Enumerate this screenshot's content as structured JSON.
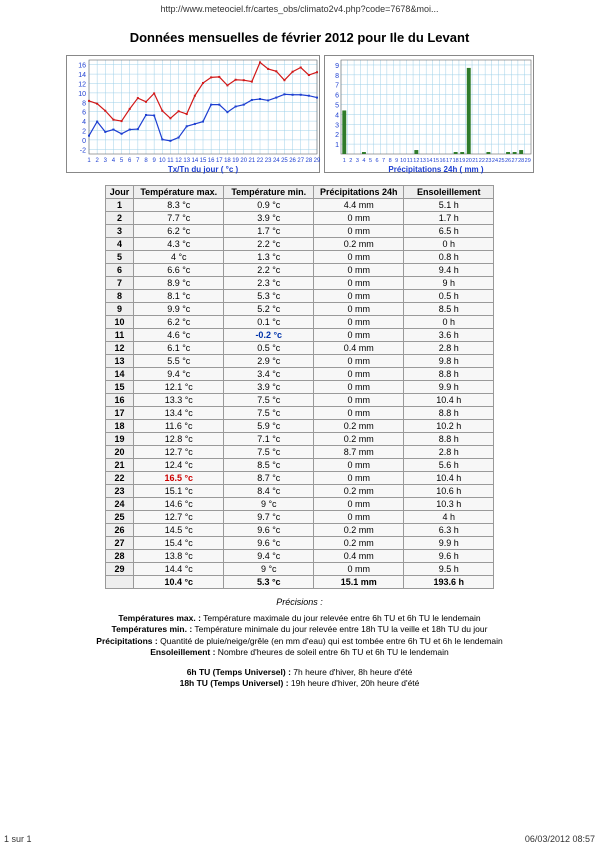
{
  "url": "http://www.meteociel.fr/cartes_obs/climato2v4.php?code=7678&moi...",
  "title": "Données mensuelles de février 2012 pour Ile du Levant",
  "footer_left": "1 sur 1",
  "footer_right": "06/03/2012 08:57",
  "precisions_label": "Précisions :",
  "defs": {
    "tmax_label": "Températures max. :",
    "tmax_text": " Température maximale du jour relevée entre 6h TU et 6h TU le lendemain",
    "tmin_label": "Températures min. :",
    "tmin_text": " Température minimale du jour relevée entre 18h TU la veille et 18h TU du jour",
    "precip_label": "Précipitations :",
    "precip_text": " Quantité de pluie/neige/grêle (en mm d'eau) qui est tombée entre 6h TU et 6h le lendemain",
    "ensol_label": "Ensoleillement :",
    "ensol_text": " Nombre d'heures de soleil entre 6h TU et 6h TU le lendemain"
  },
  "tu": {
    "line1_label": "6h TU (Temps Universel) :",
    "line1_text": " 7h heure d'hiver, 8h heure d'été",
    "line2_label": "18h TU (Temps Universel) :",
    "line2_text": " 19h heure d'hiver, 20h heure d'été"
  },
  "columns": [
    "Jour",
    "Température max.",
    "Température min.",
    "Précipitations 24h",
    "Ensoleillement"
  ],
  "rows": [
    [
      "1",
      "8.3 °c",
      "0.9 °c",
      "4.4 mm",
      "5.1 h"
    ],
    [
      "2",
      "7.7 °c",
      "3.9 °c",
      "0 mm",
      "1.7 h"
    ],
    [
      "3",
      "6.2 °c",
      "1.7 °c",
      "0 mm",
      "6.5 h"
    ],
    [
      "4",
      "4.3 °c",
      "2.2 °c",
      "0.2 mm",
      "0 h"
    ],
    [
      "5",
      "4 °c",
      "1.3 °c",
      "0 mm",
      "0.8 h"
    ],
    [
      "6",
      "6.6 °c",
      "2.2 °c",
      "0 mm",
      "9.4 h"
    ],
    [
      "7",
      "8.9 °c",
      "2.3 °c",
      "0 mm",
      "9 h"
    ],
    [
      "8",
      "8.1 °c",
      "5.3 °c",
      "0 mm",
      "0.5 h"
    ],
    [
      "9",
      "9.9 °c",
      "5.2 °c",
      "0 mm",
      "8.5 h"
    ],
    [
      "10",
      "6.2 °c",
      "0.1 °c",
      "0 mm",
      "0 h"
    ],
    [
      "11",
      "4.6 °c",
      "-0.2 °c",
      "0 mm",
      "3.6 h"
    ],
    [
      "12",
      "6.1 °c",
      "0.5 °c",
      "0.4 mm",
      "2.8 h"
    ],
    [
      "13",
      "5.5 °c",
      "2.9 °c",
      "0 mm",
      "9.8 h"
    ],
    [
      "14",
      "9.4 °c",
      "3.4 °c",
      "0 mm",
      "8.8 h"
    ],
    [
      "15",
      "12.1 °c",
      "3.9 °c",
      "0 mm",
      "9.9 h"
    ],
    [
      "16",
      "13.3 °c",
      "7.5 °c",
      "0 mm",
      "10.4 h"
    ],
    [
      "17",
      "13.4 °c",
      "7.5 °c",
      "0 mm",
      "8.8 h"
    ],
    [
      "18",
      "11.6 °c",
      "5.9 °c",
      "0.2 mm",
      "10.2 h"
    ],
    [
      "19",
      "12.8 °c",
      "7.1 °c",
      "0.2 mm",
      "8.8 h"
    ],
    [
      "20",
      "12.7 °c",
      "7.5 °c",
      "8.7 mm",
      "2.8 h"
    ],
    [
      "21",
      "12.4 °c",
      "8.5 °c",
      "0 mm",
      "5.6 h"
    ],
    [
      "22",
      "16.5 °c",
      "8.7 °c",
      "0 mm",
      "10.4 h"
    ],
    [
      "23",
      "15.1 °c",
      "8.4 °c",
      "0.2 mm",
      "10.6 h"
    ],
    [
      "24",
      "14.6 °c",
      "9 °c",
      "0 mm",
      "10.3 h"
    ],
    [
      "25",
      "12.7 °c",
      "9.7 °c",
      "0 mm",
      "4 h"
    ],
    [
      "26",
      "14.5 °c",
      "9.6 °c",
      "0.2 mm",
      "6.3 h"
    ],
    [
      "27",
      "15.4 °c",
      "9.6 °c",
      "0.2 mm",
      "9.9 h"
    ],
    [
      "28",
      "13.8 °c",
      "9.4 °c",
      "0.4 mm",
      "9.6 h"
    ],
    [
      "29",
      "14.4 °c",
      "9 °c",
      "0 mm",
      "9.5 h"
    ]
  ],
  "totals": [
    "",
    "10.4 °c",
    "5.3 °c",
    "15.1 mm",
    "193.6 h"
  ],
  "temp_chart": {
    "type": "line",
    "x_label": "Tx/Tn du jour ( °c )",
    "y_ticks": [
      -2,
      0,
      2,
      4,
      6,
      8,
      10,
      12,
      14,
      16
    ],
    "x_ticks": [
      "1",
      "2",
      "3",
      "4",
      "5",
      "6",
      "7",
      "8",
      "9",
      "10",
      "11",
      "12",
      "13",
      "14",
      "15",
      "16",
      "17",
      "18",
      "19",
      "20",
      "21",
      "22",
      "23",
      "24",
      "25",
      "26",
      "27",
      "28",
      "29"
    ],
    "ylim": [
      -3,
      17
    ],
    "series": {
      "tmax": {
        "color": "#d11919",
        "values": [
          8.3,
          7.7,
          6.2,
          4.3,
          4.0,
          6.6,
          8.9,
          8.1,
          9.9,
          6.2,
          4.6,
          6.1,
          5.5,
          9.4,
          12.1,
          13.3,
          13.4,
          11.6,
          12.8,
          12.7,
          12.4,
          16.5,
          15.1,
          14.6,
          12.7,
          14.5,
          15.4,
          13.8,
          14.4
        ]
      },
      "tmin": {
        "color": "#1e3fd1",
        "values": [
          0.9,
          3.9,
          1.7,
          2.2,
          1.3,
          2.2,
          2.3,
          5.3,
          5.2,
          0.1,
          -0.2,
          0.5,
          2.9,
          3.4,
          3.9,
          7.5,
          7.5,
          5.9,
          7.1,
          7.5,
          8.5,
          8.7,
          8.4,
          9.0,
          9.7,
          9.6,
          9.6,
          9.4,
          9.0
        ]
      }
    },
    "grid_color": "#9fd0e8",
    "bg_color": "#ffffff",
    "tick_label_color": "#1e3fd1",
    "tick_fontsize": 7,
    "line_width": 1.2,
    "marker_size": 2
  },
  "precip_chart": {
    "type": "bar",
    "x_label": "Précipitations 24h ( mm )",
    "y_ticks": [
      1,
      2,
      3,
      4,
      5,
      6,
      7,
      8,
      9
    ],
    "x_ticks": [
      "1",
      "2",
      "3",
      "4",
      "5",
      "6",
      "7",
      "8",
      "9",
      "10",
      "11",
      "12",
      "13",
      "14",
      "15",
      "16",
      "17",
      "18",
      "19",
      "20",
      "21",
      "22",
      "23",
      "24",
      "25",
      "26",
      "27",
      "28",
      "29"
    ],
    "ylim": [
      0,
      9.5
    ],
    "values": [
      4.4,
      0,
      0,
      0.2,
      0,
      0,
      0,
      0,
      0,
      0,
      0,
      0.4,
      0,
      0,
      0,
      0,
      0,
      0.2,
      0.2,
      8.7,
      0,
      0,
      0.2,
      0,
      0,
      0.2,
      0.2,
      0.4,
      0
    ],
    "bar_color": "#2f7b2a",
    "grid_color": "#9fd0e8",
    "bg_color": "#ffffff",
    "tick_label_color": "#1e3fd1",
    "tick_fontsize": 7,
    "bar_width": 0.6
  }
}
